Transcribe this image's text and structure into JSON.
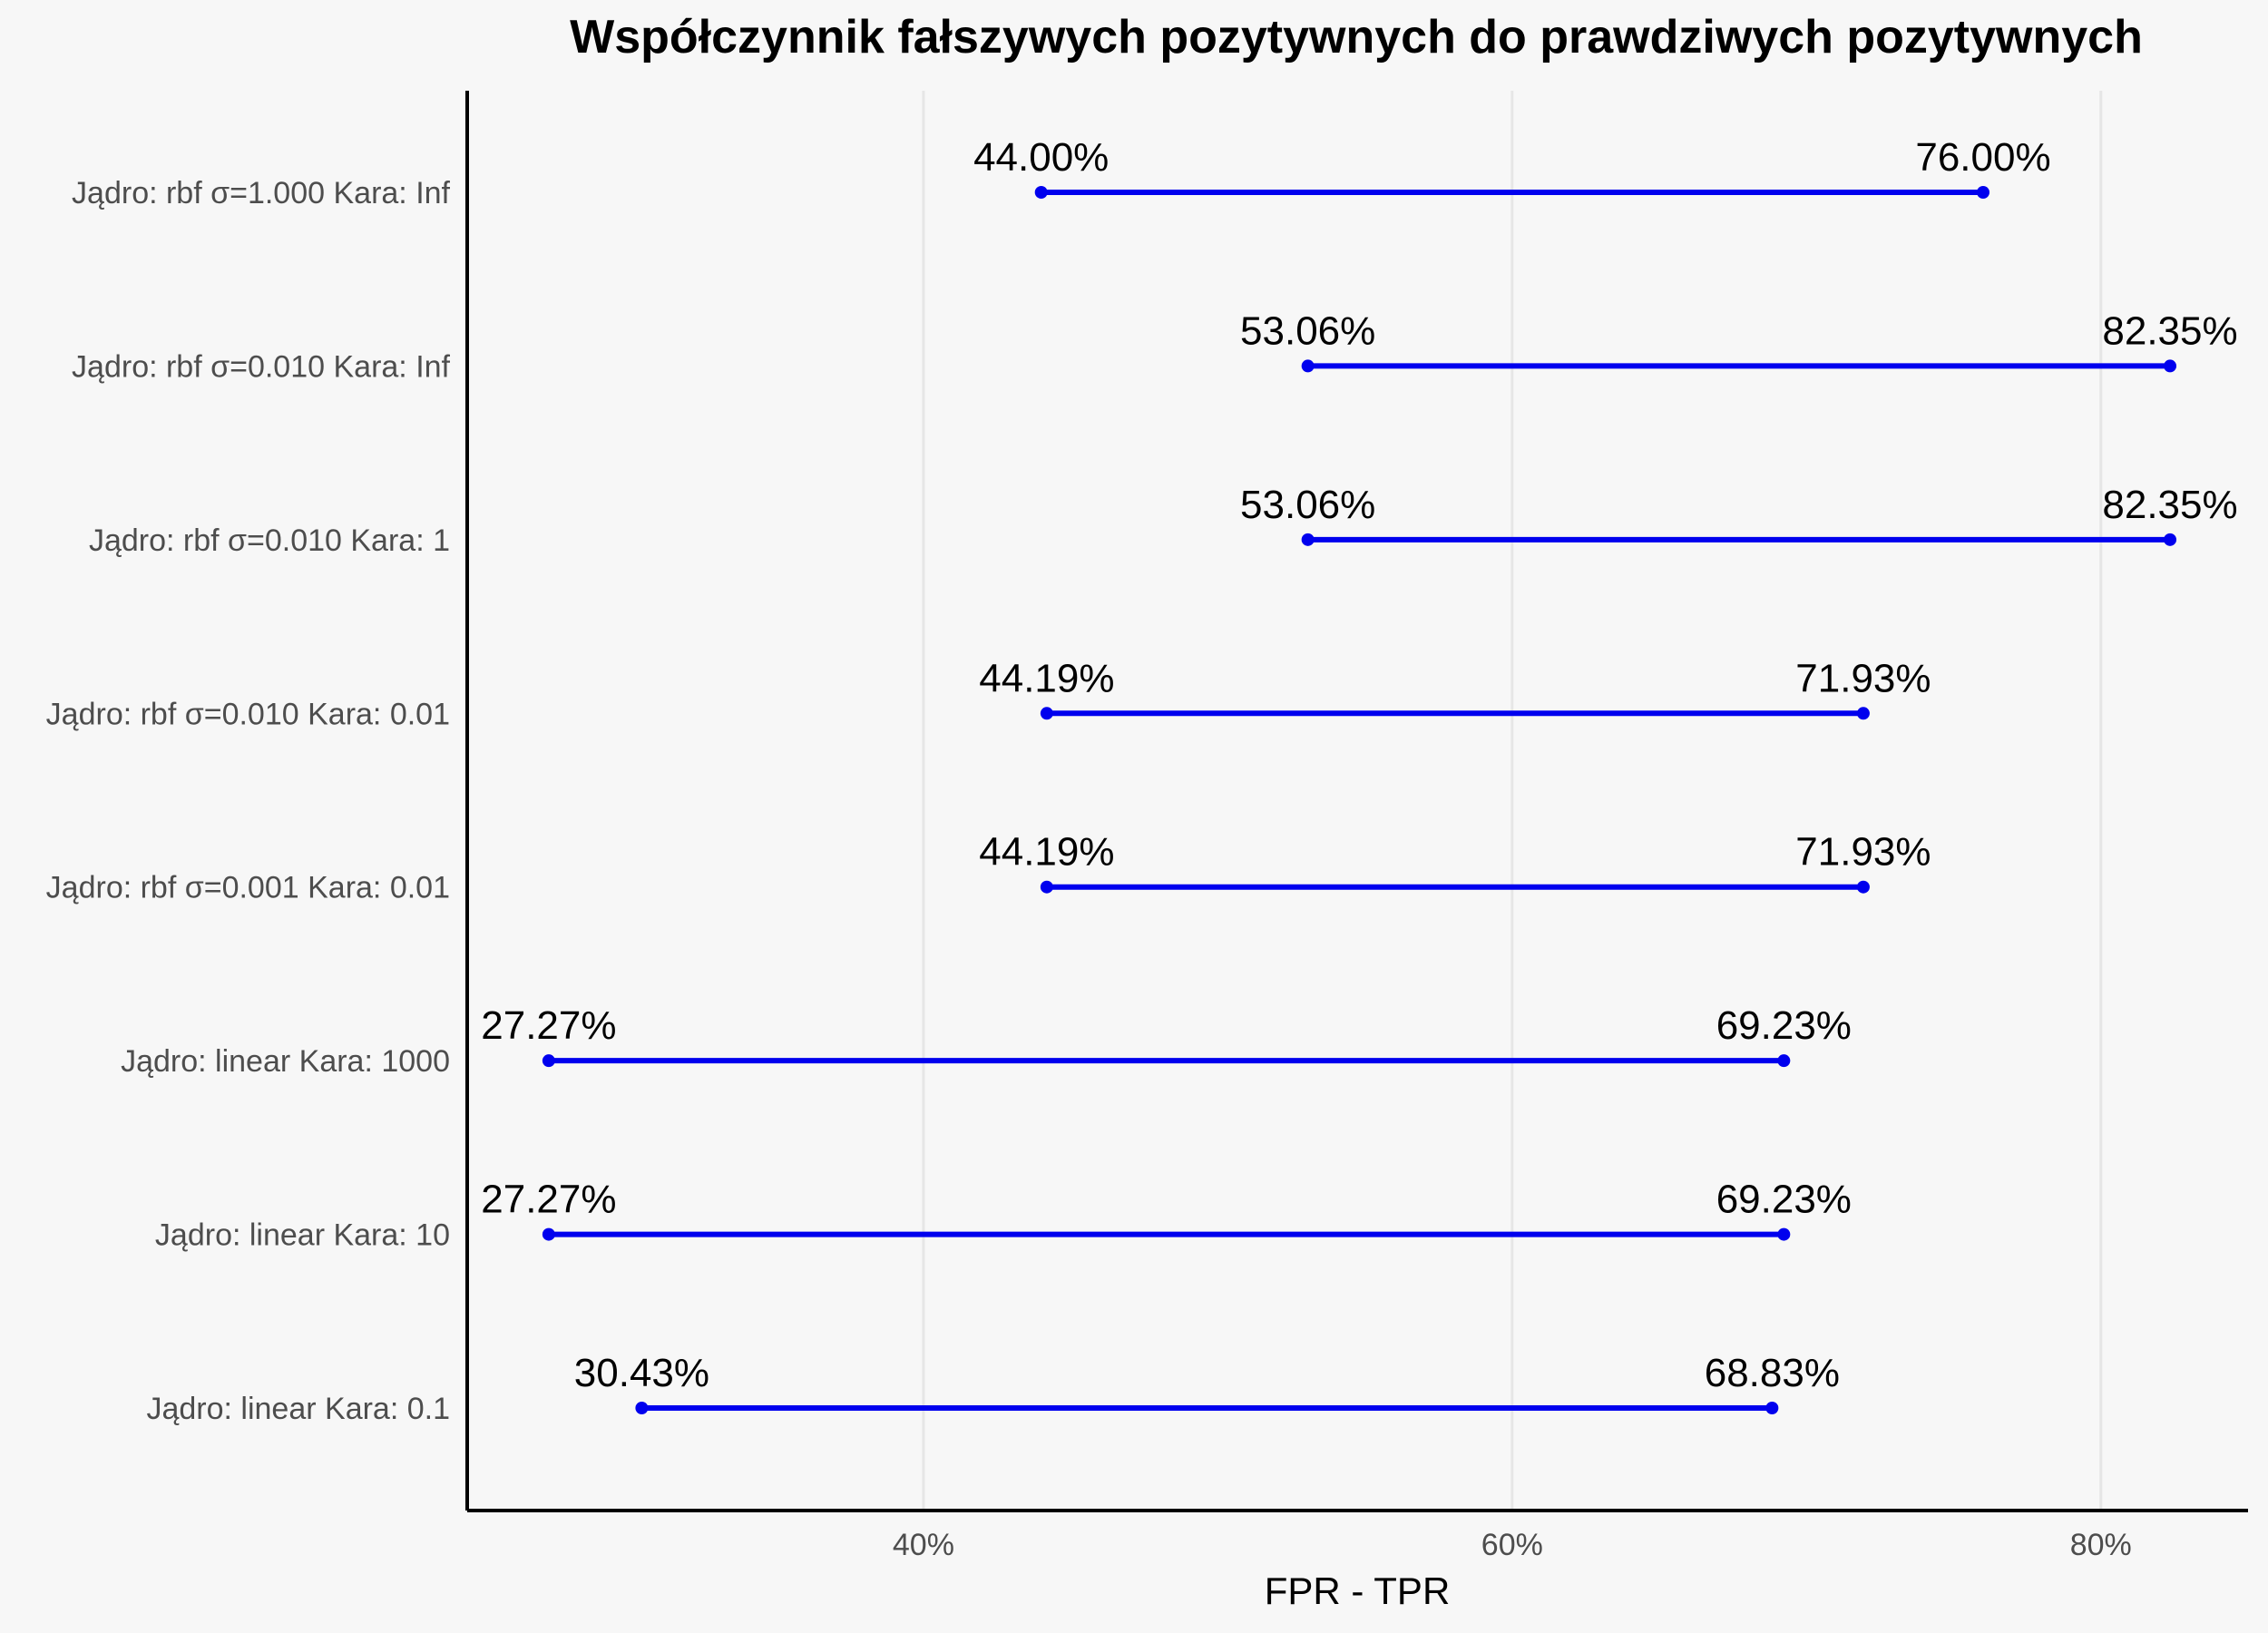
{
  "chart_data": {
    "type": "dumbbell",
    "title": "Współczynnik fałszywych pozytywnych do prawdziwych pozytywnych",
    "xlabel": "FPR - TPR",
    "ylabel": "",
    "xlim": [
      24.5,
      85.0
    ],
    "xticks": [
      40,
      60,
      80
    ],
    "xtick_labels": [
      "40%",
      "60%",
      "80%"
    ],
    "grid": "vertical major",
    "color": "#0000ee",
    "categories": [
      "Jądro: rbf σ=1.000 Kara: Inf",
      "Jądro: rbf σ=0.010 Kara: Inf",
      "Jądro: rbf σ=0.010 Kara: 1",
      "Jądro: rbf σ=0.010 Kara: 0.01",
      "Jądro: rbf σ=0.001 Kara: 0.01",
      "Jądro: linear  Kara: 1000",
      "Jądro: linear  Kara: 10",
      "Jądro: linear  Kara: 0.1"
    ],
    "fpr": [
      44.0,
      53.06,
      53.06,
      44.19,
      44.19,
      27.27,
      27.27,
      30.43
    ],
    "tpr": [
      76.0,
      82.35,
      82.35,
      71.93,
      71.93,
      69.23,
      69.23,
      68.83
    ],
    "fpr_labels": [
      "44.00%",
      "53.06%",
      "53.06%",
      "44.19%",
      "44.19%",
      "27.27%",
      "27.27%",
      "30.43%"
    ],
    "tpr_labels": [
      "76.00%",
      "82.35%",
      "82.35%",
      "71.93%",
      "71.93%",
      "69.23%",
      "69.23%",
      "68.83%"
    ]
  }
}
